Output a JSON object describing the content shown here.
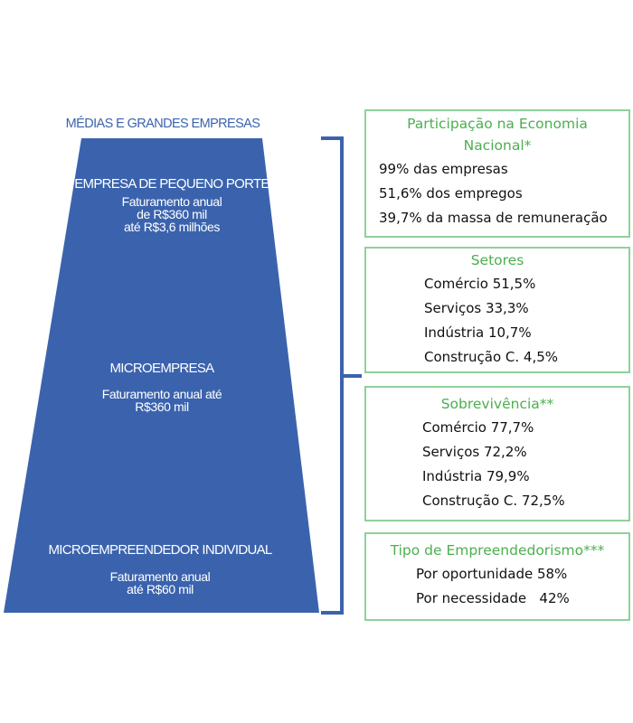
{
  "pyramid": {
    "top_label": "MÉDIAS E GRANDES EMPRESAS",
    "color": "#3b63ad",
    "tiers": [
      {
        "title": "EMPRESA DE PEQUENO PORTE",
        "sub": [
          "Faturamento anual",
          "de R$360 mil",
          "até R$3,6 milhões"
        ]
      },
      {
        "title": "MICROEMPRESA",
        "sub": [
          "Faturamento anual até",
          "R$360 mil"
        ]
      },
      {
        "title": "MICROEMPREENDEDOR INDIVIDUAL",
        "sub": [
          "Faturamento anual",
          "até R$60 mil"
        ]
      }
    ]
  },
  "boxes": [
    {
      "title_lines": [
        "Participação na Economia",
        "Nacional*"
      ],
      "items": [
        "99% das empresas",
        "51,6% dos empregos",
        "39,7% da massa de remuneração"
      ]
    },
    {
      "title_lines": [
        "Setores"
      ],
      "items": [
        "Comércio 51,5%",
        "Serviços 33,3%",
        "Indústria 10,7%",
        "Construção C. 4,5%"
      ]
    },
    {
      "title_lines": [
        "Sobrevivência**"
      ],
      "items": [
        "Comércio 77,7%",
        "Serviços 72,2%",
        "Indústria 79,9%",
        "Construção C. 72,5%"
      ]
    },
    {
      "title_lines": [
        "Tipo de Empreendedorismo***"
      ],
      "items": [
        "Por oportunidade 58%",
        "Por necessidade   42%"
      ]
    }
  ],
  "colors": {
    "box_border": "#8fd19a",
    "box_title": "#4caf50",
    "bracket": "#3b63ad"
  }
}
